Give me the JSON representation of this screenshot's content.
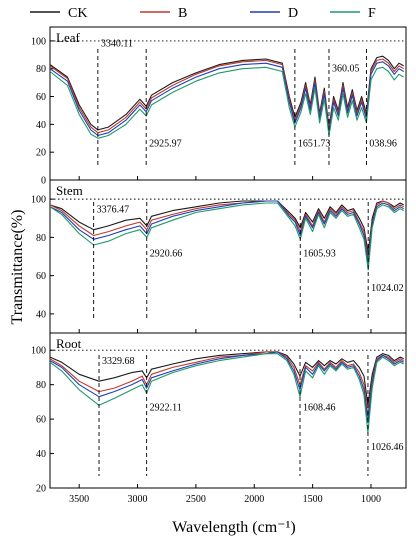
{
  "legend": [
    {
      "name": "CK",
      "color": "#1a1a1a"
    },
    {
      "name": "B",
      "color": "#c0392b"
    },
    {
      "name": "D",
      "color": "#1f3fb8"
    },
    {
      "name": "F",
      "color": "#1f9a6a"
    }
  ],
  "xlabel": "Wavelength (cm⁻¹)",
  "ylabel": "Transmittance(%)",
  "chart_data": [
    {
      "type": "line",
      "panel": "Leaf",
      "title": "Leaf",
      "xlim": [
        3750,
        700
      ],
      "ylim": [
        0,
        110
      ],
      "x_reversed": true,
      "xticks": [
        3500,
        3000,
        2500,
        2000,
        1500,
        1000
      ],
      "yticks": [
        0,
        20,
        40,
        60,
        80,
        100
      ],
      "reference_line_y": 100,
      "annotations": [
        {
          "x": 3340,
          "text": "3340.11",
          "y": 96
        },
        {
          "x": 2926,
          "text": "2925.97",
          "y": 24
        },
        {
          "x": 1652,
          "text": "1651.73",
          "y": 24
        },
        {
          "x": 1360,
          "text": "360.05",
          "y": 78
        },
        {
          "x": 1039,
          "text": "038.96",
          "y": 24
        }
      ],
      "x": [
        3750,
        3600,
        3500,
        3400,
        3340,
        3250,
        3100,
        2980,
        2926,
        2880,
        2700,
        2500,
        2300,
        2100,
        1900,
        1760,
        1700,
        1652,
        1600,
        1560,
        1520,
        1480,
        1440,
        1400,
        1360,
        1320,
        1280,
        1240,
        1200,
        1160,
        1120,
        1080,
        1039,
        1000,
        950,
        900,
        850,
        800,
        760,
        720
      ],
      "series": [
        {
          "name": "CK",
          "values": [
            83,
            74,
            54,
            40,
            36,
            38,
            47,
            58,
            53,
            61,
            70,
            77,
            83,
            86,
            87,
            84,
            60,
            45,
            56,
            70,
            54,
            74,
            48,
            66,
            38,
            60,
            50,
            70,
            52,
            65,
            50,
            60,
            48,
            80,
            88,
            89,
            86,
            80,
            84,
            82
          ]
        },
        {
          "name": "B",
          "values": [
            82,
            73,
            52,
            38,
            34,
            36,
            45,
            56,
            51,
            59,
            68,
            76,
            82,
            85,
            86,
            83,
            58,
            43,
            54,
            68,
            52,
            72,
            46,
            64,
            36,
            58,
            48,
            68,
            50,
            63,
            48,
            58,
            46,
            78,
            86,
            87,
            84,
            78,
            82,
            80
          ]
        },
        {
          "name": "D",
          "values": [
            80,
            71,
            50,
            36,
            32,
            34,
            43,
            54,
            49,
            57,
            66,
            74,
            80,
            83,
            84,
            81,
            56,
            41,
            52,
            66,
            50,
            70,
            44,
            62,
            34,
            56,
            46,
            66,
            48,
            61,
            46,
            56,
            44,
            76,
            84,
            85,
            82,
            76,
            80,
            78
          ]
        },
        {
          "name": "F",
          "values": [
            78,
            68,
            47,
            33,
            30,
            32,
            40,
            51,
            46,
            54,
            63,
            71,
            77,
            80,
            81,
            78,
            52,
            38,
            49,
            62,
            47,
            66,
            41,
            58,
            32,
            52,
            43,
            62,
            45,
            57,
            43,
            52,
            41,
            72,
            80,
            81,
            78,
            72,
            76,
            74
          ]
        }
      ]
    },
    {
      "type": "line",
      "panel": "Stem",
      "title": "Stem",
      "xlim": [
        3750,
        700
      ],
      "ylim": [
        30,
        110
      ],
      "x_reversed": true,
      "xticks": [
        3500,
        3000,
        2500,
        2000,
        1500,
        1000
      ],
      "yticks": [
        40,
        60,
        80,
        100
      ],
      "reference_line_y": 100,
      "annotations": [
        {
          "x": 3376,
          "text": "3376.47",
          "y": 93
        },
        {
          "x": 2921,
          "text": "2920.66",
          "y": 70
        },
        {
          "x": 1606,
          "text": "1605.93",
          "y": 70
        },
        {
          "x": 1024,
          "text": "1024.02",
          "y": 52
        }
      ],
      "x": [
        3750,
        3650,
        3500,
        3376,
        3250,
        3100,
        2980,
        2921,
        2880,
        2700,
        2500,
        2300,
        2100,
        1900,
        1800,
        1700,
        1650,
        1606,
        1560,
        1500,
        1450,
        1400,
        1350,
        1300,
        1250,
        1200,
        1150,
        1100,
        1060,
        1024,
        990,
        950,
        900,
        850,
        800,
        750,
        720
      ],
      "series": [
        {
          "name": "CK",
          "values": [
            97,
            95,
            88,
            84,
            86,
            89,
            90,
            86,
            91,
            94,
            96,
            98,
            99,
            99,
            99,
            93,
            90,
            85,
            93,
            88,
            95,
            90,
            96,
            93,
            97,
            94,
            95,
            90,
            85,
            72,
            90,
            98,
            99,
            98,
            96,
            98,
            97
          ]
        },
        {
          "name": "B",
          "values": [
            97,
            94,
            86,
            81,
            83,
            86,
            88,
            84,
            89,
            92,
            95,
            97,
            98,
            99,
            99,
            92,
            89,
            83,
            92,
            86,
            94,
            88,
            95,
            92,
            96,
            93,
            94,
            88,
            83,
            69,
            88,
            97,
            99,
            98,
            95,
            97,
            96
          ]
        },
        {
          "name": "D",
          "values": [
            96,
            93,
            84,
            79,
            81,
            84,
            86,
            82,
            87,
            91,
            94,
            96,
            98,
            99,
            99,
            91,
            88,
            81,
            91,
            85,
            93,
            87,
            94,
            91,
            95,
            92,
            93,
            87,
            81,
            66,
            87,
            96,
            98,
            97,
            94,
            96,
            95
          ]
        },
        {
          "name": "F",
          "values": [
            96,
            92,
            82,
            76,
            78,
            82,
            84,
            80,
            85,
            89,
            93,
            95,
            97,
            98,
            98,
            90,
            86,
            79,
            90,
            83,
            92,
            85,
            93,
            90,
            94,
            91,
            92,
            85,
            79,
            63,
            85,
            95,
            97,
            96,
            93,
            95,
            94
          ]
        }
      ]
    },
    {
      "type": "line",
      "panel": "Root",
      "title": "Root",
      "xlim": [
        3750,
        700
      ],
      "ylim": [
        20,
        110
      ],
      "x_reversed": true,
      "xticks": [
        3500,
        3000,
        2500,
        2000,
        1500,
        1000
      ],
      "yticks": [
        20,
        40,
        60,
        80,
        100
      ],
      "reference_line_y": 100,
      "annotations": [
        {
          "x": 3330,
          "text": "3329.68",
          "y": 92
        },
        {
          "x": 2922,
          "text": "2922.11",
          "y": 65
        },
        {
          "x": 1608,
          "text": "1608.46",
          "y": 65
        },
        {
          "x": 1026,
          "text": "1026.46",
          "y": 42
        }
      ],
      "x": [
        3750,
        3650,
        3500,
        3330,
        3200,
        3050,
        2960,
        2922,
        2880,
        2700,
        2500,
        2300,
        2100,
        1900,
        1800,
        1720,
        1660,
        1608,
        1560,
        1500,
        1450,
        1400,
        1350,
        1300,
        1250,
        1200,
        1150,
        1100,
        1060,
        1026,
        990,
        950,
        900,
        850,
        800,
        750,
        720
      ],
      "series": [
        {
          "name": "CK",
          "values": [
            96,
            93,
            86,
            82,
            84,
            87,
            88,
            84,
            89,
            92,
            95,
            97,
            98,
            99,
            99,
            97,
            92,
            85,
            93,
            90,
            94,
            91,
            94,
            92,
            95,
            93,
            94,
            90,
            85,
            68,
            86,
            96,
            98,
            97,
            94,
            96,
            95
          ]
        },
        {
          "name": "B",
          "values": [
            95,
            91,
            82,
            76,
            78,
            82,
            85,
            80,
            86,
            90,
            93,
            96,
            97,
            99,
            99,
            96,
            90,
            80,
            91,
            88,
            93,
            89,
            93,
            90,
            94,
            91,
            92,
            87,
            80,
            62,
            83,
            95,
            97,
            96,
            93,
            95,
            94
          ]
        },
        {
          "name": "D",
          "values": [
            94,
            90,
            80,
            73,
            76,
            80,
            83,
            78,
            84,
            88,
            92,
            95,
            97,
            98,
            99,
            95,
            88,
            77,
            90,
            86,
            92,
            88,
            92,
            89,
            93,
            90,
            91,
            85,
            77,
            58,
            81,
            94,
            97,
            95,
            92,
            94,
            93
          ]
        },
        {
          "name": "F",
          "values": [
            93,
            88,
            77,
            68,
            72,
            77,
            80,
            75,
            82,
            87,
            91,
            94,
            96,
            98,
            98,
            94,
            86,
            73,
            88,
            84,
            91,
            86,
            91,
            88,
            92,
            89,
            90,
            83,
            74,
            52,
            78,
            93,
            96,
            94,
            91,
            93,
            92
          ]
        }
      ]
    }
  ]
}
